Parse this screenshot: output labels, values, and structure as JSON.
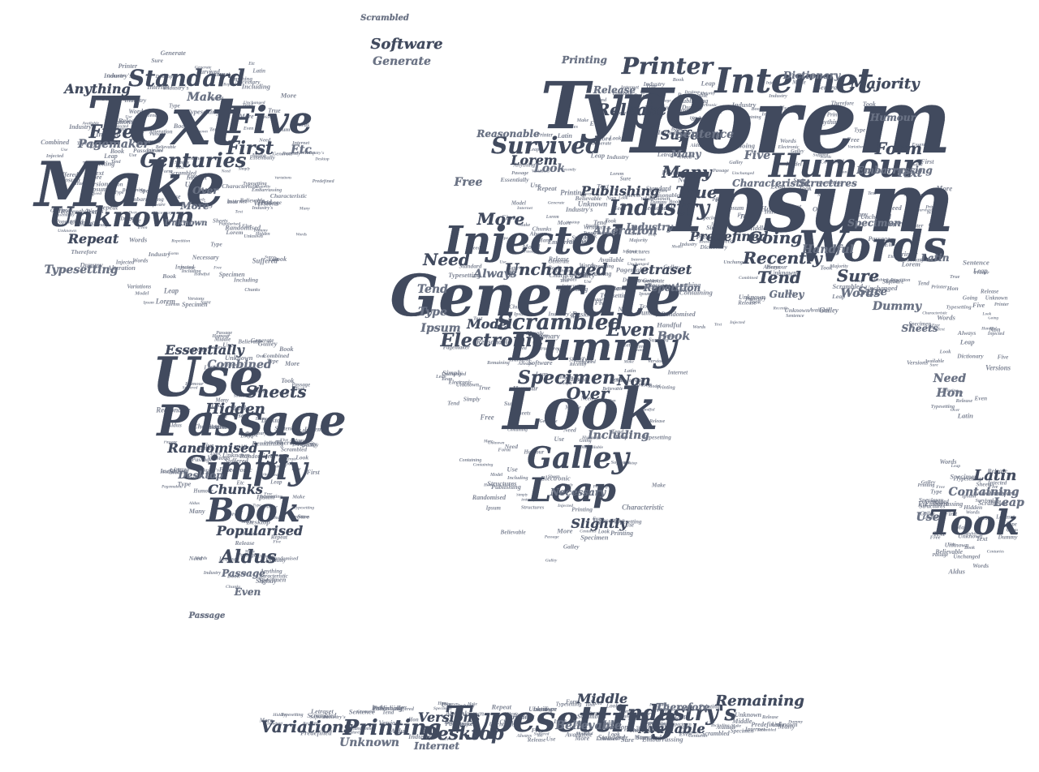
{
  "colors": {
    "ink": "#414a5e",
    "ink_light": "#6a7284",
    "background": "#ffffff"
  },
  "words": [
    {
      "text": "Lorem",
      "weight": 1.0
    },
    {
      "text": "Ipsum",
      "weight": 0.95
    },
    {
      "text": "Text",
      "weight": 0.78
    },
    {
      "text": "Type",
      "weight": 0.75
    },
    {
      "text": "Generate",
      "weight": 0.72
    },
    {
      "text": "Make",
      "weight": 0.72
    },
    {
      "text": "Look",
      "weight": 0.66
    },
    {
      "text": "Use",
      "weight": 0.64
    },
    {
      "text": "Passage",
      "weight": 0.58
    },
    {
      "text": "Dummy",
      "weight": 0.52
    },
    {
      "text": "Words",
      "weight": 0.52
    },
    {
      "text": "Injected",
      "weight": 0.5
    },
    {
      "text": "Internet",
      "weight": 0.5
    },
    {
      "text": "Five",
      "weight": 0.5
    },
    {
      "text": "Humour",
      "weight": 0.48
    },
    {
      "text": "Typesetting",
      "weight": 0.48
    },
    {
      "text": "Simply",
      "weight": 0.46
    },
    {
      "text": "Book",
      "weight": 0.46
    },
    {
      "text": "Took",
      "weight": 0.46
    },
    {
      "text": "Leap",
      "weight": 0.44
    },
    {
      "text": "Galley",
      "weight": 0.42
    },
    {
      "text": "Unknown",
      "weight": 0.42
    },
    {
      "text": "Standard",
      "weight": 0.4
    },
    {
      "text": "Printer",
      "weight": 0.4
    },
    {
      "text": "Industry",
      "weight": 0.38
    },
    {
      "text": "Survived",
      "weight": 0.38
    },
    {
      "text": "Scrambled",
      "weight": 0.36
    },
    {
      "text": "Centuries",
      "weight": 0.36
    },
    {
      "text": "Printing",
      "weight": 0.36
    },
    {
      "text": "Industry's",
      "weight": 0.34
    },
    {
      "text": "Specimen",
      "weight": 0.32
    },
    {
      "text": "Even",
      "weight": 0.34
    },
    {
      "text": "Aldus",
      "weight": 0.32
    },
    {
      "text": "Electronic",
      "weight": 0.32
    },
    {
      "text": "Desktop",
      "weight": 0.32
    },
    {
      "text": "Sheets",
      "weight": 0.3
    },
    {
      "text": "Etc",
      "weight": 0.3
    },
    {
      "text": "Unchanged",
      "weight": 0.3
    },
    {
      "text": "Release",
      "weight": 0.3
    },
    {
      "text": "First",
      "weight": 0.3
    },
    {
      "text": "Free",
      "weight": 0.3
    },
    {
      "text": "Form",
      "weight": 0.3
    },
    {
      "text": "Going",
      "weight": 0.3
    },
    {
      "text": "Recently",
      "weight": 0.3
    },
    {
      "text": "Tend",
      "weight": 0.3
    },
    {
      "text": "Sure",
      "weight": 0.3
    },
    {
      "text": "True",
      "weight": 0.3
    },
    {
      "text": "Many",
      "weight": 0.3
    },
    {
      "text": "Need",
      "weight": 0.3
    },
    {
      "text": "More",
      "weight": 0.3
    },
    {
      "text": "Over",
      "weight": 0.3
    },
    {
      "text": "Non",
      "weight": 0.3
    },
    {
      "text": "Latin",
      "weight": 0.3
    },
    {
      "text": "Containing",
      "weight": 0.26
    },
    {
      "text": "Hidden",
      "weight": 0.28
    },
    {
      "text": "Randomised",
      "weight": 0.26
    },
    {
      "text": "Essentially",
      "weight": 0.26
    },
    {
      "text": "Chunks",
      "weight": 0.24
    },
    {
      "text": "Popularised",
      "weight": 0.24
    },
    {
      "text": "Variations",
      "weight": 0.26
    },
    {
      "text": "Versions",
      "weight": 0.26
    },
    {
      "text": "Middle",
      "weight": 0.26
    },
    {
      "text": "Remaining",
      "weight": 0.26
    },
    {
      "text": "Available",
      "weight": 0.26
    },
    {
      "text": "Believable",
      "weight": 0.24
    },
    {
      "text": "Unknown",
      "weight": 0.24
    },
    {
      "text": "Internet",
      "weight": 0.24
    },
    {
      "text": "Software",
      "weight": 0.26
    },
    {
      "text": "Anything",
      "weight": 0.24
    },
    {
      "text": "Repeat",
      "weight": 0.24
    },
    {
      "text": "Letraset",
      "weight": 0.26
    },
    {
      "text": "Publishing",
      "weight": 0.26
    },
    {
      "text": "Alteration",
      "weight": 0.24
    },
    {
      "text": "Including",
      "weight": 0.24
    },
    {
      "text": "Embarrassing",
      "weight": 0.22
    },
    {
      "text": "Suffered",
      "weight": 0.26
    },
    {
      "text": "Slightly",
      "weight": 0.26
    },
    {
      "text": "Model",
      "weight": 0.26
    },
    {
      "text": "Handful",
      "weight": 0.24
    },
    {
      "text": "Majority",
      "weight": 0.26
    },
    {
      "text": "Predefined",
      "weight": 0.24
    },
    {
      "text": "Combined",
      "weight": 0.24
    },
    {
      "text": "Lorem",
      "weight": 0.24
    },
    {
      "text": "Always",
      "weight": 0.24
    },
    {
      "text": "Pagemaker",
      "weight": 0.22
    },
    {
      "text": "Typesetting",
      "weight": 0.22
    },
    {
      "text": "Dictionary",
      "weight": 0.22
    },
    {
      "text": "Passage",
      "weight": 0.22
    },
    {
      "text": "Necessary",
      "weight": 0.2
    },
    {
      "text": "Generate",
      "weight": 0.24
    },
    {
      "text": "Sentence",
      "weight": 0.22
    },
    {
      "text": "Characteristic",
      "weight": 0.18
    },
    {
      "text": "Structures",
      "weight": 0.2
    },
    {
      "text": "Therefore",
      "weight": 0.2
    },
    {
      "text": "Reasonable",
      "weight": 0.2
    },
    {
      "text": "Repetition",
      "weight": 0.18
    },
    {
      "text": "Words",
      "weight": 0.24
    },
    {
      "text": "Dummy",
      "weight": 0.24
    },
    {
      "text": "Etc",
      "weight": 0.22
    },
    {
      "text": "Look",
      "weight": 0.24
    },
    {
      "text": "Type",
      "weight": 0.24
    },
    {
      "text": "Ipsum",
      "weight": 0.24
    },
    {
      "text": "Tend",
      "weight": 0.24
    },
    {
      "text": "Text",
      "weight": 0.24
    },
    {
      "text": "Book",
      "weight": 0.22
    },
    {
      "text": "Free",
      "weight": 0.2
    },
    {
      "text": "Need",
      "weight": 0.22
    },
    {
      "text": "Hon",
      "weight": 0.2
    },
    {
      "text": "Use",
      "weight": 0.24
    },
    {
      "text": "Sure",
      "weight": 0.22
    },
    {
      "text": "Leap",
      "weight": 0.24
    },
    {
      "text": "Five",
      "weight": 0.22
    },
    {
      "text": "Make",
      "weight": 0.22
    },
    {
      "text": "More",
      "weight": 0.2
    },
    {
      "text": "Over",
      "weight": 0.22
    },
    {
      "text": "Even",
      "weight": 0.22
    },
    {
      "text": "Industry",
      "weight": 0.2
    },
    {
      "text": "Humour",
      "weight": 0.22
    },
    {
      "text": "Gulley",
      "weight": 0.2
    },
    {
      "text": "Latin",
      "weight": 0.2
    },
    {
      "text": "Desktop",
      "weight": 0.2
    },
    {
      "text": "Printing",
      "weight": 0.2
    },
    {
      "text": "Scrambled",
      "weight": 0.18
    },
    {
      "text": "Unknown",
      "weight": 0.18
    },
    {
      "text": "Passage",
      "weight": 0.18
    },
    {
      "text": "Specimen",
      "weight": 0.18
    },
    {
      "text": "Sheets",
      "weight": 0.18
    },
    {
      "text": "Many",
      "weight": 0.18
    },
    {
      "text": "Release",
      "weight": 0.2
    }
  ]
}
